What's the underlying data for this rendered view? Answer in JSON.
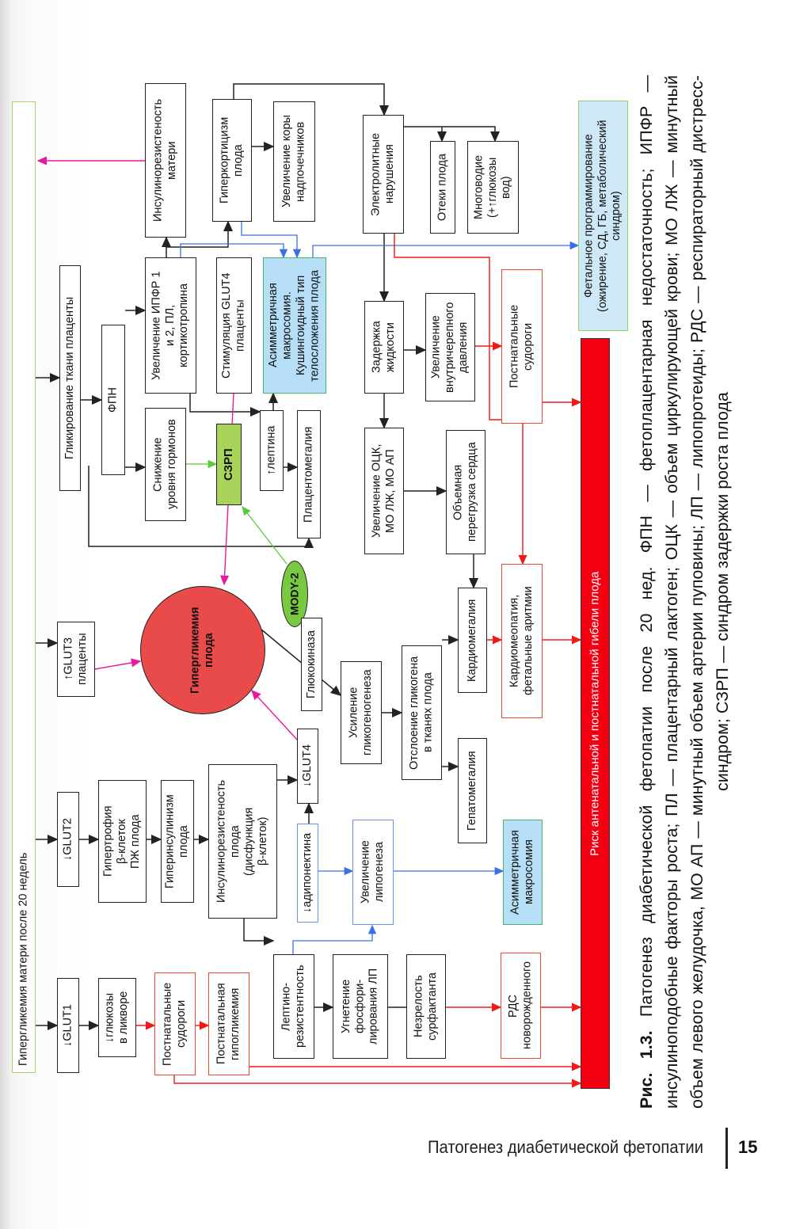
{
  "diagram": {
    "nodes": {
      "maternal_hyperglycemia": "Гипергликемия матери после 20 недель",
      "glut1": "↓GLUT1",
      "glut2": "↓GLUT2",
      "glut3": "↑GLUT3\nплаценты",
      "placenta_glycation": "Гликирование ткани плаценты",
      "csf_glucose": "↓глюкозы\nв ликворе",
      "beta_hypertrophy": "Гипертрофия\nβ-клеток\nПЖ плода",
      "fpn": "ФПН",
      "postnatal_seizures_1": "Постнатальные\nсудороги",
      "hyperinsulinism": "Гиперинсулинизм\nплода",
      "hormone_decrease": "Снижение\nуровня гормонов",
      "igf_increase": "Увеличение ИПФР 1\nи 2, ПЛ,\nкортикотропина",
      "maternal_insulin_resistance": "Инсулинорезистеность\nматери",
      "fetal_hyperglycemia": "Гипергликемия\nплода",
      "postnatal_hypoglycemia": "Постнатальная\nгипогликемия",
      "fetal_insulin_resistance": "Инсулинорезистеность\nплода\n(дисфункция\nβ-клеток)",
      "iugr": "СЗРП",
      "glut4_stimulation": "Стимуляция GLUT4\nплаценты",
      "hypercorticism": "Гиперкортицизм\nплода",
      "adrenal_cortex": "Увеличение коры\nнадпочечников",
      "asym_macrosomia_cushing": "Асимметричная\nмакросомия.\nКушингоидный тип\nтелосложения плода",
      "leptin_up": "↑лептина",
      "placentomegaly": "Плацентомегалия",
      "mody2": "MODY-2",
      "glucokinase": "Глюкокиназа",
      "glut4_down": "↓GLUT4",
      "adiponectin_down": "↓адипонектина",
      "leptin_resistance": "Лептино-\nрезистентность",
      "lp_phosphorylation": "Угнетение\nфосфори-\nлирования ЛП",
      "surfactant": "Незрелость\nсурфактанта",
      "glycogenesis": "Усиление\nгликогеногенеза",
      "lipogenesis": "Увеличение\nлипогенеза",
      "electrolyte": "Электролитные\nнарушения",
      "fluid_retention": "Задержка\nжидкости",
      "bcv_increase": "Увеличение ОЦК,\nМО ЛЖ, МО АП",
      "glycogen_deposit": "Отслоение гликогена\nв тканях плода",
      "hepatomegaly": "Гепатомегалия",
      "asym_macrosomia": "Асимметричная\nмакросомия",
      "rds": "РДС\nноворожденного",
      "fetal_edema": "Отеки плода",
      "polyhydramnios": "Многоводие\n(+↑глюкозы\nвод)",
      "icp_increase": "Увеличение\nвнутричерепного\nдавления",
      "volume_overload": "Объемная\nперегрузка сердца",
      "cardiomegaly": "Кардиомегалия",
      "postnatal_seizures_2": "Постнатальные\nсудороги",
      "cardiomyopathy": "Кардиомеопатия,\nфетальные аритмии",
      "fetal_programming": "Фетальное программирование\n(ожирение, СД, ГБ, метаболический\nсиндром)",
      "death_risk": "Риск антенатальной и постнатальной гибели плода"
    },
    "colors": {
      "black_arrow": "#222222",
      "pink_arrow": "#e8199b",
      "green_arrow": "#5cc83c",
      "blue_arrow": "#3a6fe8",
      "red_arrow": "#f01818",
      "hyperglycemia_fill": "#e94b4b",
      "risk_bar_fill": "#f20012",
      "macrosomia_fill": "#b6def6",
      "iugr_fill": "#a8d45c",
      "mody_fill": "#78c841"
    }
  },
  "caption": {
    "label": "Рис. 1.3.",
    "text": " Патогенез диабетической фетопатии после 20 нед. ФПН — фетоплацентарная недостаточность; ИПФР — инсулиноподобные факторы роста; ПЛ — плацентарный лактоген; ОЦК — объем циркулирующей крови; МО ЛЖ — минутный объем левого желудочка, МО АП — минутный объем артерии пуповины; ЛП — липопротеиды; РДС — респираторный дистресс-синдром; СЗРП — синдром задержки роста плода"
  },
  "footer": {
    "running_title": "Патогенез диабетической фетопатии",
    "page_number": "15"
  }
}
